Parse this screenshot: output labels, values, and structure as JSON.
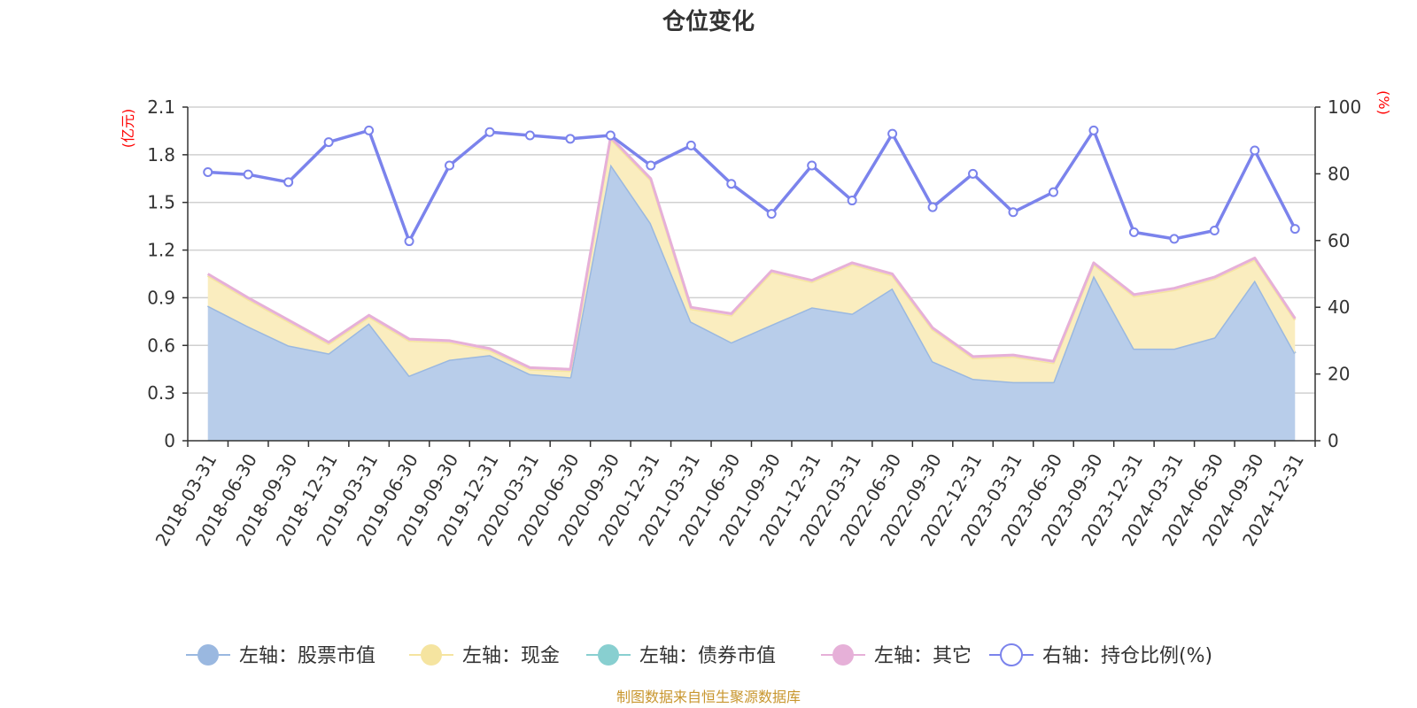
{
  "chart_data": {
    "type": "area",
    "title": "仓位变化",
    "categories": [
      "2018-03-31",
      "2018-06-30",
      "2018-09-30",
      "2018-12-31",
      "2019-03-31",
      "2019-06-30",
      "2019-09-30",
      "2019-12-31",
      "2020-03-31",
      "2020-06-30",
      "2020-09-30",
      "2020-12-31",
      "2021-03-31",
      "2021-06-30",
      "2021-09-30",
      "2021-12-31",
      "2022-03-31",
      "2022-06-30",
      "2022-09-30",
      "2022-12-31",
      "2023-03-31",
      "2023-06-30",
      "2023-09-30",
      "2023-12-31",
      "2024-03-31",
      "2024-06-30",
      "2024-09-30",
      "2024-12-31"
    ],
    "left_axis": {
      "unit": "(亿元)",
      "ylim": [
        0,
        2.1
      ],
      "ticks": [
        "0",
        "0.3",
        "0.6",
        "0.9",
        "1.2",
        "1.5",
        "1.8",
        "2.1"
      ]
    },
    "right_axis": {
      "unit": "(%)",
      "ylim": [
        0,
        100
      ],
      "ticks": [
        "0",
        "20",
        "40",
        "60",
        "80",
        "100"
      ]
    },
    "grid": true,
    "legend_position": "bottom",
    "series": [
      {
        "name": "左轴：股票市值",
        "axis": "left",
        "color": "#9ab8e0",
        "fill": "#b8cdea",
        "values": [
          0.85,
          0.72,
          0.6,
          0.55,
          0.74,
          0.41,
          0.51,
          0.54,
          0.42,
          0.4,
          1.74,
          1.37,
          0.75,
          0.62,
          0.73,
          0.84,
          0.8,
          0.96,
          0.5,
          0.39,
          0.37,
          0.37,
          1.04,
          0.58,
          0.58,
          0.65,
          1.01,
          0.55
        ]
      },
      {
        "name": "左轴：现金",
        "axis": "left",
        "color": "#f5e4a0",
        "fill": "#faedbf",
        "values": [
          0.19,
          0.17,
          0.15,
          0.06,
          0.04,
          0.22,
          0.11,
          0.03,
          0.03,
          0.04,
          0.16,
          0.27,
          0.08,
          0.17,
          0.33,
          0.16,
          0.31,
          0.08,
          0.2,
          0.13,
          0.16,
          0.12,
          0.07,
          0.33,
          0.37,
          0.37,
          0.13,
          0.21
        ]
      },
      {
        "name": "左轴：债券市值",
        "axis": "left",
        "color": "#88cfd0",
        "fill": "#bfe6e6",
        "values": [
          0,
          0,
          0,
          0,
          0,
          0,
          0,
          0,
          0,
          0,
          0,
          0,
          0,
          0,
          0,
          0,
          0,
          0,
          0,
          0,
          0,
          0,
          0,
          0,
          0,
          0,
          0,
          0
        ]
      },
      {
        "name": "左轴：其它",
        "axis": "left",
        "color": "#e6b0d8",
        "fill": "#f2d3ea",
        "values": [
          0.01,
          0.01,
          0.01,
          0.01,
          0.01,
          0.01,
          0.01,
          0.01,
          0.01,
          0.01,
          0.01,
          0.01,
          0.01,
          0.01,
          0.01,
          0.01,
          0.01,
          0.01,
          0.01,
          0.01,
          0.01,
          0.01,
          0.01,
          0.01,
          0.01,
          0.01,
          0.01,
          0.01
        ]
      },
      {
        "name": "右轴：持仓比例(%)",
        "axis": "right",
        "color": "#7b83ec",
        "values": [
          80.5,
          79.8,
          77.5,
          89.5,
          93.0,
          59.8,
          82.5,
          92.5,
          91.5,
          90.5,
          91.5,
          82.5,
          88.5,
          77.0,
          68.0,
          82.5,
          72.0,
          92.0,
          70.0,
          80.0,
          68.5,
          74.5,
          93.0,
          62.5,
          60.5,
          63.0,
          87.0,
          63.5
        ]
      }
    ]
  },
  "source_text": "制图数据来自恒生聚源数据库"
}
